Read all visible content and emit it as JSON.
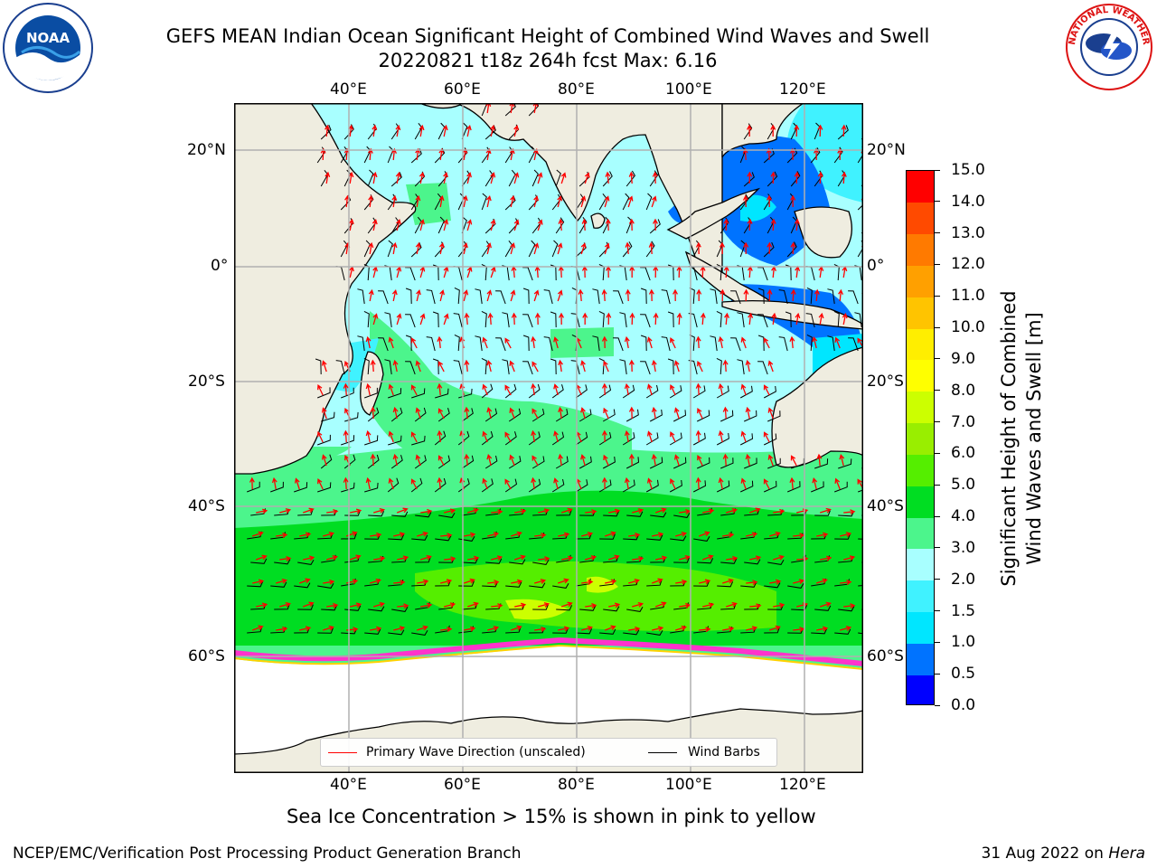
{
  "title_line1": "GEFS MEAN Indian Ocean Significant Height of Combined Wind Waves and Swell",
  "title_line2": "20220821 t18z 264h fcst   Max: 6.16",
  "logos": {
    "left": "NOAA",
    "right": "NATIONAL WEATHER SERVICE"
  },
  "map": {
    "lon_labels": [
      "40°E",
      "60°E",
      "80°E",
      "100°E",
      "120°E"
    ],
    "lat_labels": [
      "20°N",
      "0°",
      "20°S",
      "40°S",
      "60°S"
    ],
    "lon_values": [
      40,
      60,
      80,
      100,
      120
    ],
    "lat_values": [
      20,
      0,
      -20,
      -40,
      -60
    ],
    "lon_range": [
      20,
      130
    ],
    "lat_range": [
      -73,
      27
    ],
    "grid": true,
    "land_color": "#efede0",
    "sea_ice_color": "#ffffff"
  },
  "colorbar": {
    "title_line1": "Significant Height of Combined",
    "title_line2": "Wind Waves and Swell [m]",
    "tick_labels": [
      "0.0",
      "0.5",
      "1.0",
      "1.5",
      "2.0",
      "3.0",
      "4.0",
      "5.0",
      "6.0",
      "7.0",
      "8.0",
      "9.0",
      "10.0",
      "11.0",
      "12.0",
      "13.0",
      "14.0",
      "15.0"
    ],
    "colors": [
      "#0000ff",
      "#0073ff",
      "#00e6ff",
      "#40f2ff",
      "#a8ffff",
      "#4cf58c",
      "#00dd22",
      "#55ee00",
      "#99ee00",
      "#ccff00",
      "#ffff00",
      "#ffee00",
      "#ffc400",
      "#ffa000",
      "#ff7a00",
      "#ff4a00",
      "#ff0000"
    ]
  },
  "legend": {
    "wave_label": "Primary Wave Direction (unscaled)",
    "wave_color": "#ff0000",
    "wind_label": "Wind Barbs",
    "wind_color": "#000000"
  },
  "caption": "Sea Ice Concentration > 15% is shown in pink to yellow",
  "footer_left": "NCEP/EMC/Verification Post Processing Product Generation Branch",
  "footer_right_prefix": "31 Aug 2022 on ",
  "footer_right_host": "Hera"
}
